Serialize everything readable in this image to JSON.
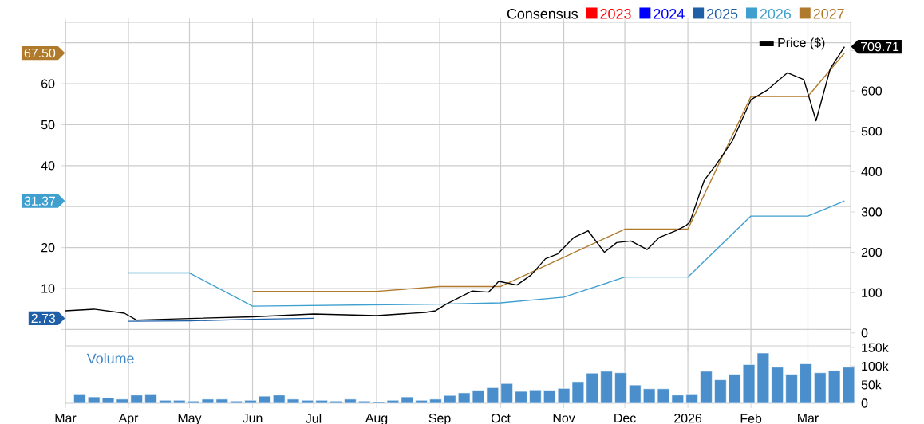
{
  "chart_data": [
    {
      "type": "line",
      "legend_title": "Consensus",
      "legend": "top right",
      "grid": true,
      "tick_labels": "y",
      "xlim": [
        "2025-03-01",
        "2026-03-22"
      ],
      "xticks": [
        {
          "value": "2025-03-01",
          "label": null
        },
        {
          "value": "2025-04-01",
          "label": null
        },
        {
          "value": "2025-05-01",
          "label": null
        },
        {
          "value": "2025-06-01",
          "label": null
        },
        {
          "value": "2025-07-01",
          "label": null
        },
        {
          "value": "2025-08-01",
          "label": null
        },
        {
          "value": "2025-09-01",
          "label": null
        },
        {
          "value": "2025-10-01",
          "label": null
        },
        {
          "value": "2025-11-01",
          "label": null
        },
        {
          "value": "2025-12-01",
          "label": null
        },
        {
          "value": "2026-01-01",
          "label": null
        },
        {
          "value": "2026-02-01",
          "label": null
        },
        {
          "value": "2026-03-01",
          "label": null
        }
      ],
      "ylim": [
        -4,
        75
      ],
      "yticks": [
        {
          "value": 0,
          "label": null
        },
        10,
        20,
        {
          "value": 30,
          "label": null
        },
        40,
        50,
        60,
        {
          "value": 70,
          "label": null
        }
      ],
      "y2lim": [
        -32,
        770
      ],
      "annotations": [
        "67.50",
        "31.37",
        "2.73"
      ],
      "y2ticks": [
        0,
        100,
        200,
        300,
        400,
        500,
        600,
        {
          "value": 700,
          "label": null
        }
      ],
      "series": [
        {
          "name": "2023",
          "color": "#ff0000"
        },
        {
          "name": "2024",
          "color": "#0000ff"
        },
        {
          "name": "2025",
          "color": "#1f5fa8",
          "x": [
            "2025-04-01",
            "2025-05-01",
            "2025-06-01",
            "2025-07-01"
          ],
          "values": [
            2.0,
            2.1,
            2.5,
            2.73
          ]
        },
        {
          "name": "2026",
          "color": "#3fa0d0",
          "x": [
            "2025-04-01",
            "2025-05-01",
            "2025-06-01",
            "2025-09-01",
            "2025-10-01",
            "2025-11-01",
            "2025-12-01",
            "2026-01-01",
            "2026-02-01",
            "2026-03-01",
            "2026-03-19"
          ],
          "values": [
            13.8,
            13.8,
            5.7,
            6.2,
            6.5,
            7.9,
            12.8,
            12.8,
            27.7,
            27.7,
            31.37
          ]
        },
        {
          "name": "2027",
          "color": "#b07a2c",
          "x": [
            "2025-06-01",
            "2025-08-01",
            "2025-09-01",
            "2025-10-01",
            "2025-12-01",
            "2026-01-01",
            "2026-02-01",
            "2026-03-01",
            "2026-03-19"
          ],
          "values": [
            9.3,
            9.3,
            10.5,
            10.5,
            24.5,
            24.5,
            56.9,
            56.9,
            67.5
          ]
        },
        {
          "name": "Price ($)",
          "color": "#000000",
          "axis": "y2",
          "x": [
            "2025-03-01",
            "2025-03-15",
            "2025-03-30",
            "2025-04-05",
            "2025-05-01",
            "2025-06-01",
            "2025-07-01",
            "2025-08-01",
            "2025-08-25",
            "2025-08-30",
            "2025-09-04",
            "2025-09-17",
            "2025-09-25",
            "2025-09-30",
            "2025-10-09",
            "2025-10-16",
            "2025-10-23",
            "2025-10-29",
            "2025-11-06",
            "2025-11-13",
            "2025-11-21",
            "2025-11-27",
            "2025-12-04",
            "2025-12-12",
            "2025-12-18",
            "2025-12-26",
            "2025-12-31",
            "2026-01-02",
            "2026-01-09",
            "2026-01-15",
            "2026-01-23",
            "2026-02-01",
            "2026-02-09",
            "2026-02-19",
            "2026-02-27",
            "2026-03-05",
            "2026-03-12",
            "2026-03-19"
          ],
          "values": [
            55,
            59,
            49,
            32,
            36,
            40,
            47,
            43,
            51,
            55,
            71,
            104,
            101,
            128,
            119,
            144,
            184,
            196,
            237,
            253,
            200,
            224,
            228,
            207,
            237,
            253,
            266,
            275,
            378,
            418,
            477,
            578,
            602,
            645,
            628,
            526,
            655,
            709.71
          ],
          "value_labels": [
            null,
            null,
            null,
            null,
            null,
            null,
            null,
            null,
            null,
            null,
            null,
            null,
            null,
            null,
            null,
            null,
            null,
            null,
            null,
            null,
            null,
            null,
            null,
            null,
            null,
            null,
            null,
            null,
            null,
            null,
            null,
            null,
            null,
            null,
            null,
            null,
            null,
            "709.71"
          ]
        }
      ]
    },
    {
      "type": "bar",
      "title": "Volume",
      "grid": "x",
      "color": "#4a8fcc",
      "xlim": [
        "2025-03-01",
        "2026-03-22"
      ],
      "xticks": [
        {
          "value": "2025-03-01",
          "label": "Mar"
        },
        {
          "value": "2025-04-01",
          "label": "Apr"
        },
        {
          "value": "2025-05-01",
          "label": "May"
        },
        {
          "value": "2025-06-01",
          "label": "Jun"
        },
        {
          "value": "2025-07-01",
          "label": "Jul"
        },
        {
          "value": "2025-08-01",
          "label": "Aug"
        },
        {
          "value": "2025-09-01",
          "label": "Sep"
        },
        {
          "value": "2025-10-01",
          "label": "Oct"
        },
        {
          "value": "2025-11-01",
          "label": "Nov"
        },
        {
          "value": "2025-12-01",
          "label": "Dec"
        },
        {
          "value": "2026-01-01",
          "label": "2026"
        },
        {
          "value": "2026-02-01",
          "label": "Feb"
        },
        {
          "value": "2026-03-01",
          "label": "Mar"
        }
      ],
      "ylim": [
        0,
        150000
      ],
      "yticks": [
        0,
        {
          "value": 50000,
          "label": "50k"
        },
        {
          "value": 100000,
          "label": "100k"
        },
        {
          "value": 150000,
          "label": "150k"
        }
      ],
      "x": [
        "2025-03-08",
        "2025-03-15",
        "2025-03-22",
        "2025-03-29",
        "2025-04-05",
        "2025-04-12",
        "2025-04-19",
        "2025-04-26",
        "2025-05-03",
        "2025-05-10",
        "2025-05-17",
        "2025-05-24",
        "2025-05-31",
        "2025-06-07",
        "2025-06-14",
        "2025-06-21",
        "2025-06-28",
        "2025-07-05",
        "2025-07-12",
        "2025-07-19",
        "2025-07-26",
        "2025-08-02",
        "2025-08-09",
        "2025-08-16",
        "2025-08-23",
        "2025-08-30",
        "2025-09-06",
        "2025-09-13",
        "2025-09-20",
        "2025-09-27",
        "2025-10-04",
        "2025-10-11",
        "2025-10-18",
        "2025-10-25",
        "2025-11-01",
        "2025-11-08",
        "2025-11-15",
        "2025-11-22",
        "2025-11-29",
        "2025-12-06",
        "2025-12-13",
        "2025-12-20",
        "2025-12-27",
        "2026-01-03",
        "2026-01-10",
        "2026-01-17",
        "2026-01-24",
        "2026-01-31",
        "2026-02-07",
        "2026-02-14",
        "2026-02-21",
        "2026-02-28",
        "2026-03-07",
        "2026-03-14",
        "2026-03-21"
      ],
      "values": [
        25000,
        17000,
        14000,
        11000,
        22000,
        25000,
        8000,
        8000,
        6000,
        11000,
        11000,
        6000,
        8000,
        19000,
        22000,
        11000,
        8000,
        8000,
        6000,
        11000,
        6000,
        3000,
        8000,
        17000,
        8000,
        11000,
        21000,
        28000,
        35000,
        42000,
        53000,
        32000,
        36000,
        35000,
        40000,
        58000,
        81000,
        86000,
        82000,
        49000,
        39000,
        39000,
        22000,
        25000,
        86000,
        63000,
        78000,
        104000,
        135000,
        97000,
        78000,
        106000,
        82000,
        88000,
        97000
      ]
    }
  ]
}
